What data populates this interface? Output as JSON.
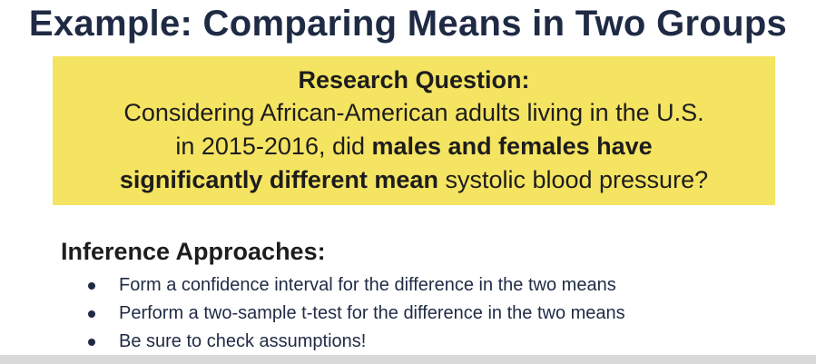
{
  "slide": {
    "title": "Example: Comparing Means in Two Groups",
    "research": {
      "heading": "Research Question:",
      "line1": "Considering African-American adults living in the U.S.",
      "line2_pre": "in 2015-2016, did ",
      "line2_bold": "males and females have",
      "line3_bold": "significantly different mean",
      "line3_post": " systolic blood pressure?"
    },
    "approaches": {
      "heading": "Inference Approaches:",
      "items": [
        "Form a confidence interval for the difference in the two means",
        "Perform a two-sample t-test for the difference in the two means",
        "Be sure to check assumptions!"
      ]
    }
  },
  "colors": {
    "title": "#1f2a44",
    "highlight_box": "#f5e462"
  }
}
